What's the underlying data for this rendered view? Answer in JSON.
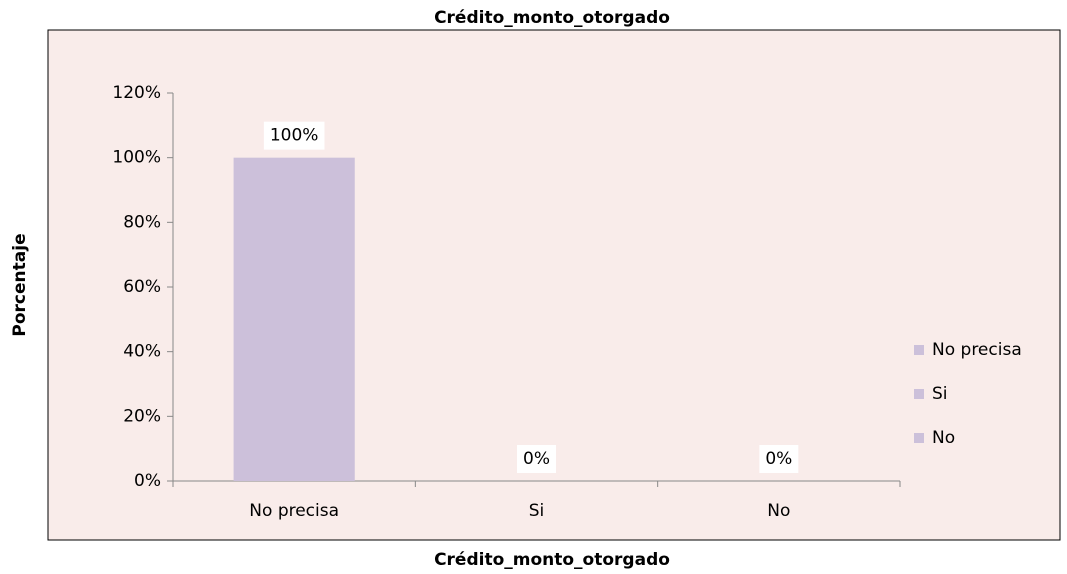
{
  "chart_data": {
    "type": "bar",
    "title": "Crédito_monto_otorgado",
    "x_label": "Crédito_monto_otorgado",
    "y_label": "Porcentaje",
    "categories": [
      "No precisa",
      "Si",
      "No"
    ],
    "values": [
      100,
      0,
      0
    ],
    "value_labels": [
      "100%",
      "0%",
      "0%"
    ],
    "color": "#ccc0da",
    "ylim": [
      0,
      120
    ],
    "yticks": [
      {
        "value": 0,
        "label": "0%"
      },
      {
        "value": 20,
        "label": "20%"
      },
      {
        "value": 40,
        "label": "40%"
      },
      {
        "value": 60,
        "label": "60%"
      },
      {
        "value": 80,
        "label": "80%"
      },
      {
        "value": 100,
        "label": "100%"
      },
      {
        "value": 120,
        "label": "120%"
      }
    ],
    "grid": false,
    "legend": "right"
  }
}
